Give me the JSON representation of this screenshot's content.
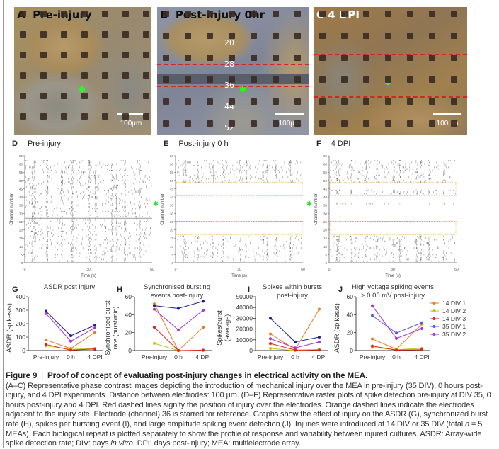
{
  "panels": {
    "a": {
      "letter": "A",
      "title": "Pre-injury",
      "scale": "100µm"
    },
    "b": {
      "letter": "B",
      "title": "Post-injury  0hr",
      "scale": "100µm",
      "channel_numbers": [
        "20",
        "28",
        "36",
        "44",
        "52"
      ]
    },
    "c": {
      "letter": "C",
      "title": "4 DPI",
      "scale": "100µm"
    }
  },
  "rasters": [
    {
      "letter": "D",
      "title": "Pre-injury",
      "ylabel": "Channel number",
      "xlabel": "Time (s)",
      "yticks": [
        "0",
        "5",
        "10",
        "15",
        "20",
        "25",
        "30",
        "35",
        "40",
        "45",
        "50",
        "55",
        "60",
        "65"
      ],
      "xticks": [
        "0",
        "30",
        "60"
      ],
      "injury_lines": [],
      "adjacent_boxes": [],
      "starred_channel": null
    },
    {
      "letter": "E",
      "title": "Post-injury 0 h",
      "ylabel": "Channel number",
      "xlabel": "Time (s)",
      "yticks": [
        "0",
        "5",
        "10",
        "15",
        "20",
        "25",
        "30",
        "35",
        "40",
        "45",
        "50",
        "55",
        "60",
        "65"
      ],
      "xticks": [
        "0",
        "30",
        "60"
      ],
      "injury_lines": [
        25,
        41
      ],
      "adjacent_boxes": [
        [
          17,
          25
        ],
        [
          41,
          49
        ]
      ],
      "starred_channel": 36
    },
    {
      "letter": "F",
      "title": "4 DPI",
      "ylabel": "Channel number",
      "xlabel": "Time (s)",
      "yticks": [
        "0",
        "5",
        "10",
        "15",
        "20",
        "25",
        "30",
        "35",
        "40",
        "45",
        "50",
        "55",
        "60",
        "65"
      ],
      "xticks": [
        "0",
        "30",
        "60"
      ],
      "injury_lines": [
        25,
        41
      ],
      "adjacent_boxes": [
        [
          17,
          25
        ],
        [
          41,
          49
        ]
      ],
      "starred_channel": 36
    }
  ],
  "colors": {
    "14 DIV 1": "#f07a22",
    "14 DIV 2": "#c2c21e",
    "14 DIV 3": "#e02020",
    "35 DIV 1": "#1c1c96",
    "35 DIV 2": "#b030d0",
    "injury_line": "#e02020",
    "adjacent_line": "#f0a040",
    "star": "#33dd33"
  },
  "chart_data": [
    {
      "letter": "G",
      "type": "line",
      "title": "ASDR post injury",
      "ylabel": "ASDR (spikes/s)",
      "categories": [
        "Pre-injury",
        "0 h",
        "4 DPI"
      ],
      "ylim": [
        0,
        400
      ],
      "yticks": [
        0,
        100,
        200,
        300,
        400
      ],
      "series": [
        {
          "name": "14 DIV 1",
          "values": [
            78,
            15,
            135
          ]
        },
        {
          "name": "14 DIV 2",
          "values": [
            35,
            10,
            15
          ]
        },
        {
          "name": "14 DIV 3",
          "values": [
            45,
            3,
            12
          ]
        },
        {
          "name": "35 DIV 1",
          "values": [
            292,
            110,
            188
          ]
        },
        {
          "name": "35 DIV 2",
          "values": [
            275,
            70,
            168
          ]
        }
      ]
    },
    {
      "letter": "H",
      "type": "line",
      "title": "Synchronised bursting events post-injury",
      "ylabel": "Synchronised burst rate (burst/min)",
      "categories": [
        "Pre-injury",
        "0 h",
        "4 DPI"
      ],
      "ylim": [
        0,
        60
      ],
      "yticks": [
        0,
        20,
        40,
        60
      ],
      "series": [
        {
          "name": "14 DIV 1",
          "values": [
            52,
            0,
            26
          ]
        },
        {
          "name": "14 DIV 2",
          "values": [
            8,
            0,
            0
          ]
        },
        {
          "name": "14 DIV 3",
          "values": [
            26,
            0,
            0.5
          ]
        },
        {
          "name": "35 DIV 1",
          "values": [
            50,
            47,
            55
          ]
        },
        {
          "name": "35 DIV 2",
          "values": [
            46,
            23,
            45
          ]
        }
      ]
    },
    {
      "letter": "I",
      "type": "line",
      "title": "Spikes within bursts post-injury",
      "ylabel": "Spikes/burst (average)",
      "categories": [
        "Pre-injury",
        "0 h",
        "4 DPI"
      ],
      "ylim": [
        0,
        50000
      ],
      "yticks": [
        0,
        10000,
        20000,
        30000,
        40000,
        50000
      ],
      "series": [
        {
          "name": "14 DIV 1",
          "values": [
            15500,
            1000,
            38500
          ]
        },
        {
          "name": "14 DIV 2",
          "values": [
            2000,
            0,
            1000
          ]
        },
        {
          "name": "14 DIV 3",
          "values": [
            6500,
            500,
            500
          ]
        },
        {
          "name": "35 DIV 1",
          "values": [
            30000,
            8000,
            12500
          ]
        },
        {
          "name": "35 DIV 2",
          "values": [
            11000,
            2500,
            8000
          ]
        }
      ]
    },
    {
      "letter": "J",
      "type": "line",
      "title": "High voltage spiking events > 0.05 mV post-injury",
      "ylabel": "ASDR (spikes/s)",
      "categories": [
        "Pre-injury",
        "0 h",
        "4 DPI"
      ],
      "ylim": [
        0,
        60
      ],
      "yticks": [
        0,
        20,
        40,
        60
      ],
      "legend": "right",
      "series": [
        {
          "name": "14 DIV 1",
          "values": [
            13,
            1.5,
            29.5
          ]
        },
        {
          "name": "14 DIV 2",
          "values": [
            3.5,
            1,
            2.5
          ]
        },
        {
          "name": "14 DIV 3",
          "values": [
            5,
            0.5,
            1
          ]
        },
        {
          "name": "35 DIV 1",
          "values": [
            39,
            19.5,
            31
          ]
        },
        {
          "name": "35 DIV 2",
          "values": [
            50,
            13.5,
            24.5
          ]
        }
      ]
    }
  ],
  "caption": {
    "label": "Figure 9",
    "separator": "|",
    "title": "Proof of concept of evaluating post-injury changes in electrical activity on the MEA.",
    "body_1": "(A–C) Representative phase contrast images depicting the introduction of mechanical injury over the MEA in pre-injury (35 DIV), 0 hours post-injury, and 4 DPI experiments. Distance between electrodes: 100 µm. (D–F) Representative raster plots of spike detection pre-injury at DIV 35, 0 hours post-injury and 4 DPI. Red dashed lines signify the position of injury over the electrodes. Orange dashed lines indicate the electrodes adjacent to the injury site. Electrode (channel) 36 is starred for reference. Graphs show the effect of injury on the ASDR (G), synchronized burst rate (H), spikes per bursting event (I), and large amplitude spiking event detection (J). Injuries were introduced at 14 DIV or 35 DIV (total ",
    "italic_1": "n",
    "body_2": " = 5 MEAs). Each biological repeat is plotted separately to show the profile of response and variability between injured cultures. ASDR: Array-wide spike detection rate; DIV: days ",
    "italic_2": "in vitro",
    "body_3": "; DPI: days post-injury; MEA: multielectrode array."
  }
}
